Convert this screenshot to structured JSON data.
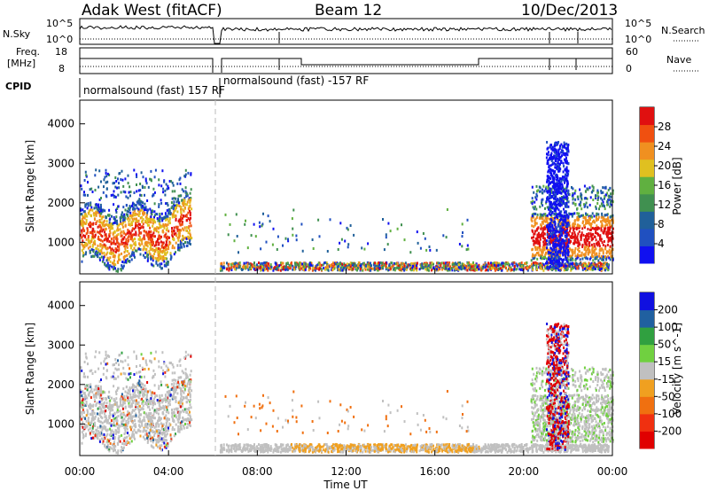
{
  "header": {
    "title_left": "Adak West (fitACF)",
    "title_center": "Beam 12",
    "title_right": "10/Dec/2013"
  },
  "strips": {
    "nsky_label": "N.Sky",
    "nsky_ticks": [
      "10^5",
      "10^0"
    ],
    "nsearch_label": "N.Search",
    "freq_label_1": "Freq.",
    "freq_label_2": "[MHz]",
    "freq_ticks": [
      "18",
      "8"
    ],
    "nave_label": "Nave",
    "nave_ticks": [
      "60",
      "0"
    ],
    "cpid_label": "CPID",
    "cpid_segments": [
      "normalsound (fast) 157 RF",
      "normalsound (fast) -157 RF"
    ]
  },
  "chart_data": [
    {
      "type": "heatmap",
      "name": "power",
      "ylabel": "Slant Range [km]",
      "yticks": [
        "1000",
        "2000",
        "3000",
        "4000"
      ],
      "ylim": [
        200,
        4600
      ],
      "colorbar_label": "Power [dB]",
      "colorbar_ticks": [
        "4",
        "8",
        "12",
        "16",
        "20",
        "24",
        "28"
      ],
      "colorbar_range": [
        0,
        32
      ],
      "colors": [
        "#1010f0",
        "#2050c0",
        "#20609a",
        "#409050",
        "#60b040",
        "#e0c020",
        "#f09020",
        "#f05010",
        "#e01010"
      ]
    },
    {
      "type": "heatmap",
      "name": "velocity",
      "ylabel": "Slant Range [km]",
      "yticks": [
        "1000",
        "2000",
        "3000",
        "4000"
      ],
      "ylim": [
        200,
        4600
      ],
      "colorbar_label": "Velocity [m s^-1]",
      "colorbar_ticks": [
        "200",
        "100",
        "50",
        "15",
        "-15",
        "-50",
        "-100",
        "-200"
      ],
      "colors": [
        "#1010e0",
        "#2060a0",
        "#30a040",
        "#70d040",
        "#c0c0c0",
        "#f0a020",
        "#f07010",
        "#f03010",
        "#e00000"
      ]
    }
  ],
  "xaxis": {
    "label": "Time UT",
    "ticks": [
      "00:00",
      "04:00",
      "08:00",
      "12:00",
      "16:00",
      "20:00",
      "00:00"
    ],
    "range_hours": [
      0,
      24
    ]
  }
}
